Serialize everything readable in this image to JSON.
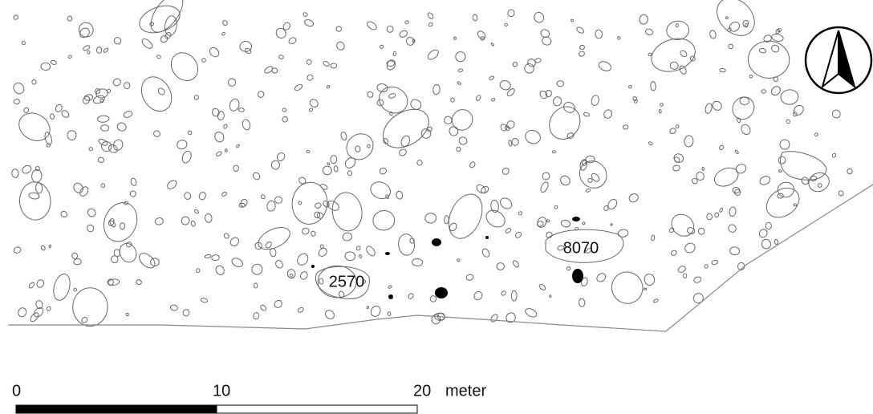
{
  "map": {
    "feature_labels": [
      "2570",
      "8070"
    ],
    "scale": {
      "ticks": [
        0,
        10,
        20
      ],
      "unit": "meter"
    }
  }
}
